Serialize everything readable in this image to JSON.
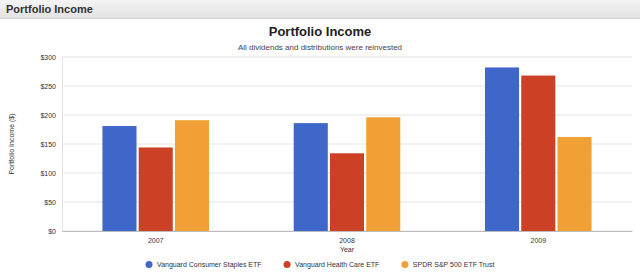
{
  "header": {
    "title": "Portfolio Income"
  },
  "chart_data": {
    "type": "bar",
    "title": "Portfolio Income",
    "subtitle": "All dividends and distributions were reinvested",
    "x_label": "Year",
    "y_label": "Portfolio Income ($)",
    "categories": [
      "2007",
      "2008",
      "2009"
    ],
    "series": [
      {
        "name": "Vanguard Consumer Staples ETF",
        "color": "#3e67c9",
        "values": [
          181,
          186,
          282
        ]
      },
      {
        "name": "Vanguard Health Care ETF",
        "color": "#cc4125",
        "values": [
          144,
          134,
          268
        ]
      },
      {
        "name": "SPDR S&P 500 ETF Trust",
        "color": "#f0a035",
        "values": [
          191,
          196,
          162
        ]
      }
    ],
    "ylim": [
      0,
      300
    ],
    "yticks": [
      {
        "value": 0,
        "label": "$0"
      },
      {
        "value": 50,
        "label": "$50"
      },
      {
        "value": 100,
        "label": "$100"
      },
      {
        "value": 150,
        "label": "$150"
      },
      {
        "value": 200,
        "label": "$200"
      },
      {
        "value": 250,
        "label": "$250"
      },
      {
        "value": 300,
        "label": "$300"
      }
    ],
    "grid": true,
    "legend": "bottom"
  }
}
